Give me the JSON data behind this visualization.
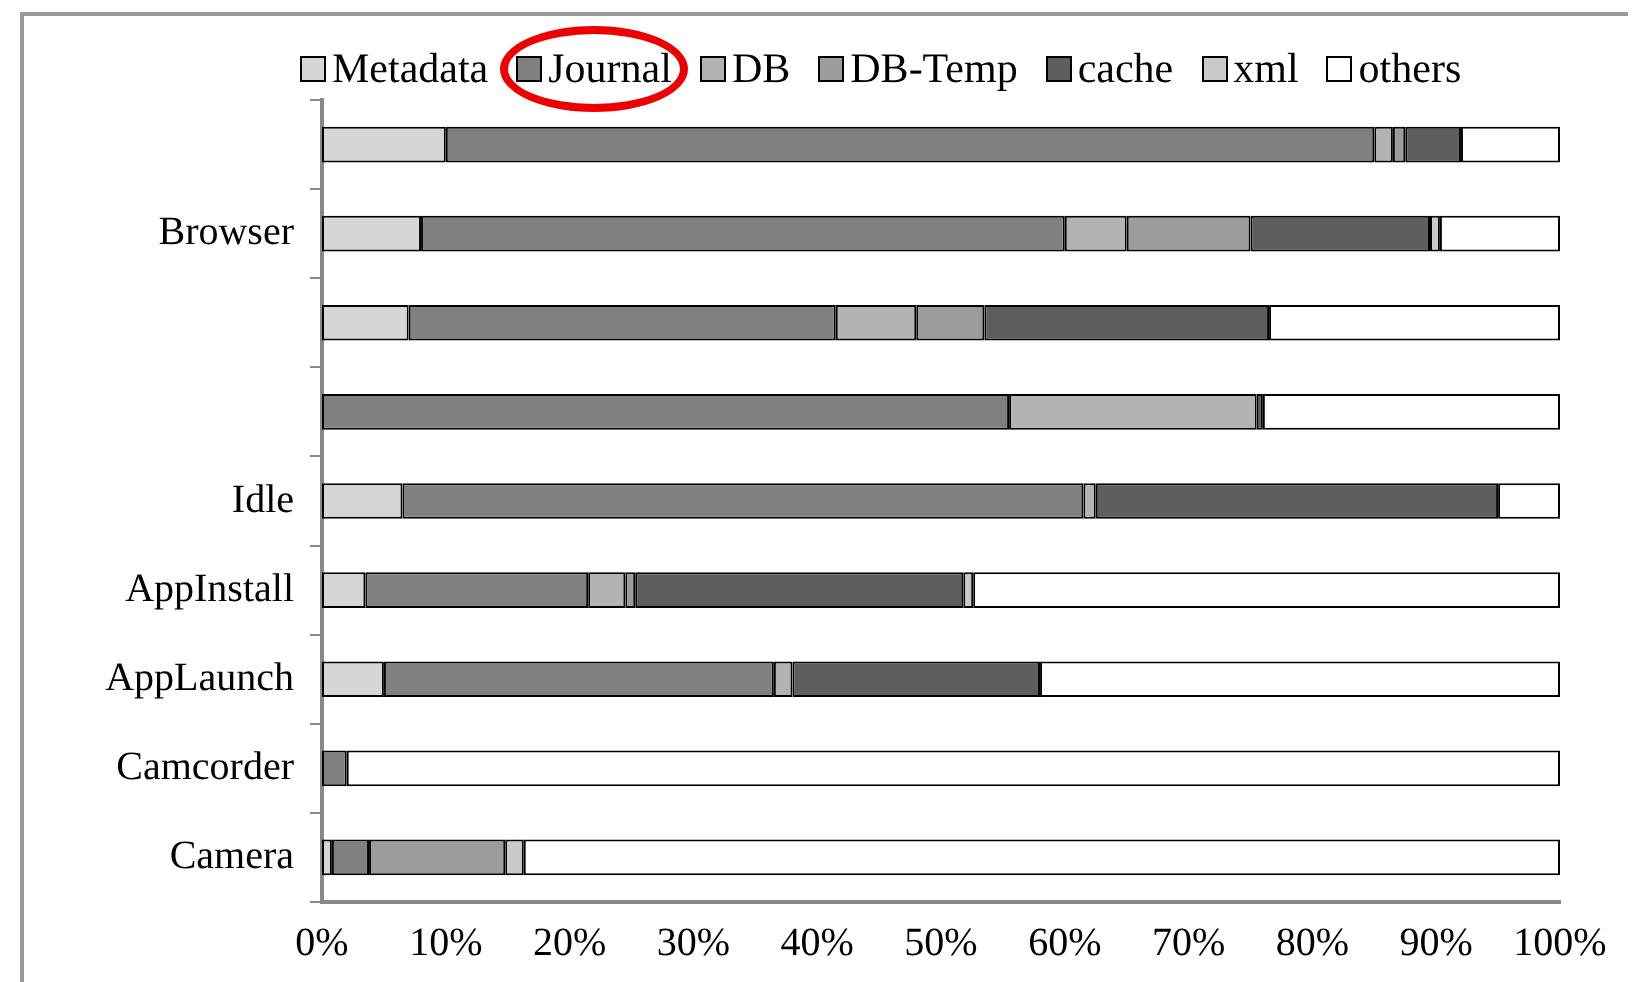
{
  "chart_data": {
    "type": "bar",
    "orientation": "horizontal",
    "stacked": true,
    "legend": "top",
    "grid": false,
    "categories": [
      null,
      "Browser",
      null,
      null,
      "Idle",
      "AppInstall",
      "AppLaunch",
      "Camcorder",
      "Camera"
    ],
    "xlim": [
      0,
      100
    ],
    "xticks": [
      {
        "value": 0,
        "label": "0%"
      },
      {
        "value": 10,
        "label": "10%"
      },
      {
        "value": 20,
        "label": "20%"
      },
      {
        "value": 30,
        "label": "30%"
      },
      {
        "value": 40,
        "label": "40%"
      },
      {
        "value": 50,
        "label": "50%"
      },
      {
        "value": 60,
        "label": "60%"
      },
      {
        "value": 70,
        "label": "70%"
      },
      {
        "value": 80,
        "label": "80%"
      },
      {
        "value": 90,
        "label": "90%"
      },
      {
        "value": 100,
        "label": "100%"
      }
    ],
    "series": [
      {
        "name": "Metadata",
        "color": "#d6d6d6",
        "values": [
          10,
          8,
          7,
          0,
          6.5,
          3.5,
          5,
          0,
          0.8
        ]
      },
      {
        "name": "Journal",
        "color": "#808080",
        "values": [
          75,
          52,
          34.5,
          55.5,
          55,
          18,
          31.5,
          2,
          3
        ]
      },
      {
        "name": "DB",
        "color": "#b3b3b3",
        "values": [
          1.5,
          5,
          6.5,
          20,
          1,
          3,
          1.5,
          0,
          0
        ]
      },
      {
        "name": "DB-Temp",
        "color": "#9c9c9c",
        "values": [
          1,
          10,
          5.5,
          0,
          0,
          0.8,
          0,
          0,
          11
        ]
      },
      {
        "name": "cache",
        "color": "#5e5e5e",
        "values": [
          4.5,
          14.5,
          23,
          0.5,
          32.5,
          26.5,
          20,
          0,
          0
        ]
      },
      {
        "name": "xml",
        "color": "#c9c9c9",
        "values": [
          0,
          0.8,
          0,
          0,
          0,
          0.8,
          0,
          0,
          1.5
        ]
      },
      {
        "name": "others",
        "color": "#ffffff",
        "values": [
          8,
          9.7,
          23.5,
          24,
          5,
          47.4,
          42,
          98,
          83.7
        ]
      }
    ]
  }
}
